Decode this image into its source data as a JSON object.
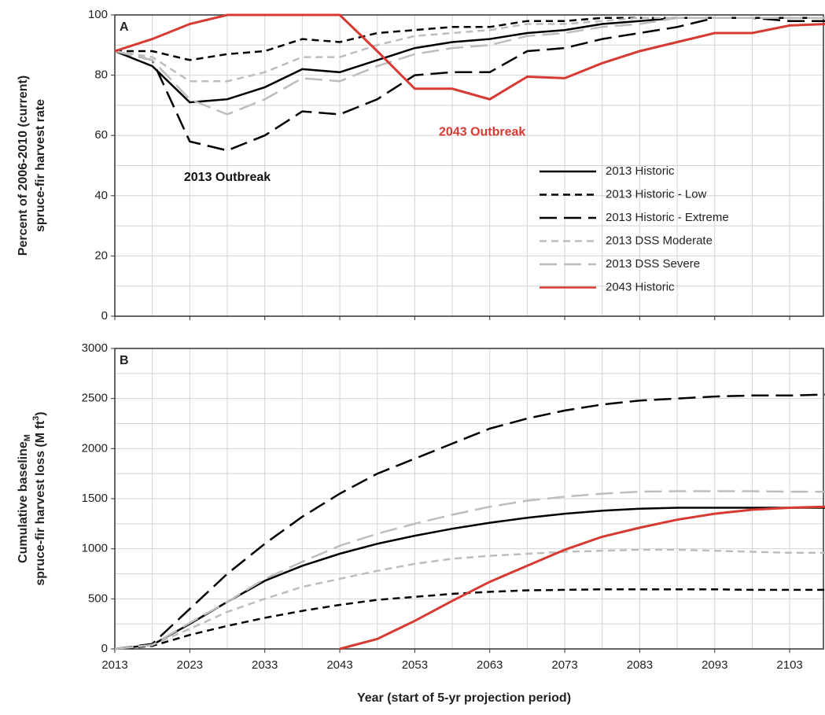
{
  "chart_data": [
    {
      "type": "line",
      "panel_label": "A",
      "ylabel": [
        "Percent of 2006-2010 (current)",
        "spruce-fir harvest rate"
      ],
      "annotations": [
        {
          "text": "2013 Outbreak",
          "x": 2028,
          "y": 46,
          "color": "#111111"
        },
        {
          "text": "2043 Outbreak",
          "x": 2062,
          "y": 61,
          "color": "#d63a32"
        }
      ],
      "x": [
        2013,
        2018,
        2023,
        2028,
        2033,
        2038,
        2043,
        2048,
        2053,
        2058,
        2063,
        2068,
        2073,
        2078,
        2083,
        2088,
        2093,
        2098,
        2103,
        2108
      ],
      "xlim": [
        2013,
        2107.5
      ],
      "xticks": [
        2013,
        2023,
        2033,
        2043,
        2053,
        2063,
        2073,
        2083,
        2093,
        2103
      ],
      "xminorticks": [
        2018,
        2028,
        2038,
        2048,
        2058,
        2068,
        2078,
        2088,
        2098
      ],
      "ylim": [
        0,
        100
      ],
      "yticks": [
        0,
        20,
        40,
        60,
        80,
        100
      ],
      "yminorticks": [
        10,
        30,
        50,
        70,
        90
      ],
      "grid": true,
      "legend": "lower right",
      "series": [
        {
          "name": "2013 Historic",
          "color": "#000000",
          "dash": "solid",
          "values": [
            88,
            83,
            71,
            72,
            76,
            82,
            81,
            85,
            89,
            91,
            92,
            94,
            95,
            97,
            98,
            99,
            99,
            99,
            99,
            99
          ]
        },
        {
          "name": "2013 Historic - Low",
          "color": "#000000",
          "dash": "short",
          "values": [
            88,
            88,
            85,
            87,
            88,
            92,
            91,
            94,
            95,
            96,
            96,
            98,
            98,
            99,
            99,
            99,
            99,
            99,
            99,
            99
          ]
        },
        {
          "name": "2013 Historic - Extreme",
          "color": "#000000",
          "dash": "long",
          "values": [
            88,
            85,
            58,
            55,
            60,
            68,
            67,
            72,
            80,
            81,
            81,
            88,
            89,
            92,
            94,
            96,
            99,
            99,
            98,
            98
          ]
        },
        {
          "name": "2013 DSS Moderate",
          "color": "#bdbdbd",
          "dash": "short",
          "values": [
            88,
            86,
            78,
            78,
            81,
            86,
            86,
            90,
            93,
            94,
            95,
            97,
            97,
            98,
            99,
            99,
            99,
            99,
            99,
            99
          ]
        },
        {
          "name": "2013 DSS Severe",
          "color": "#bdbdbd",
          "dash": "long",
          "values": [
            88,
            85,
            72,
            67,
            72,
            79,
            78,
            83,
            87,
            89,
            90,
            93,
            94,
            96,
            97,
            99,
            99,
            99,
            99,
            99
          ]
        },
        {
          "name": "2043 Historic",
          "color": "#d63a32",
          "dash": "solid",
          "values": [
            88,
            92,
            97,
            100,
            100,
            100,
            100,
            88,
            75.5,
            75.5,
            72,
            79.5,
            79,
            84,
            88,
            91,
            94,
            94,
            96.5,
            97
          ]
        }
      ]
    },
    {
      "type": "line",
      "panel_label": "B",
      "ylabel": {
        "line1": "Cumulative baseline",
        "line1_sub": "M",
        "line2": "spruce-fir harvest loss (M ft",
        "line2_sup": "3",
        "line2_end": ")"
      },
      "xlabel": "Year (start of 5-yr projection period)",
      "x": [
        2013,
        2018,
        2023,
        2028,
        2033,
        2038,
        2043,
        2048,
        2053,
        2058,
        2063,
        2068,
        2073,
        2078,
        2083,
        2088,
        2093,
        2098,
        2103,
        2108
      ],
      "xlim": [
        2013,
        2107.5
      ],
      "xticks": [
        2013,
        2023,
        2033,
        2043,
        2053,
        2063,
        2073,
        2083,
        2093,
        2103
      ],
      "xminorticks": [
        2018,
        2028,
        2038,
        2048,
        2058,
        2068,
        2078,
        2088,
        2098
      ],
      "ylim": [
        0,
        3000
      ],
      "yticks": [
        0,
        500,
        1000,
        1500,
        2000,
        2500,
        3000
      ],
      "yminorticks": [
        250,
        750,
        1250,
        1750,
        2250,
        2750
      ],
      "grid": true,
      "series": [
        {
          "color": "#000000",
          "dash": "solid",
          "values": [
            0,
            40,
            250,
            470,
            680,
            830,
            950,
            1050,
            1130,
            1200,
            1260,
            1310,
            1350,
            1380,
            1400,
            1410,
            1410,
            1410,
            1410,
            1410
          ]
        },
        {
          "color": "#000000",
          "dash": "short",
          "values": [
            0,
            30,
            140,
            230,
            310,
            380,
            440,
            490,
            520,
            550,
            570,
            585,
            590,
            595,
            595,
            595,
            595,
            590,
            590,
            590
          ]
        },
        {
          "color": "#000000",
          "dash": "long",
          "values": [
            0,
            50,
            400,
            750,
            1050,
            1320,
            1550,
            1750,
            1900,
            2050,
            2200,
            2300,
            2380,
            2440,
            2480,
            2500,
            2520,
            2530,
            2530,
            2540
          ]
        },
        {
          "color": "#bdbdbd",
          "dash": "short",
          "values": [
            0,
            40,
            200,
            370,
            500,
            620,
            700,
            780,
            850,
            900,
            930,
            950,
            970,
            980,
            990,
            990,
            980,
            970,
            960,
            960
          ]
        },
        {
          "color": "#bdbdbd",
          "dash": "long",
          "values": [
            0,
            40,
            260,
            470,
            700,
            870,
            1030,
            1150,
            1250,
            1340,
            1420,
            1480,
            1520,
            1550,
            1570,
            1575,
            1575,
            1575,
            1570,
            1570
          ]
        },
        {
          "color": "#d63a32",
          "dash": "solid",
          "values": [
            null,
            null,
            null,
            null,
            null,
            null,
            0,
            100,
            280,
            480,
            670,
            830,
            990,
            1120,
            1210,
            1290,
            1350,
            1390,
            1410,
            1420
          ]
        }
      ]
    }
  ]
}
